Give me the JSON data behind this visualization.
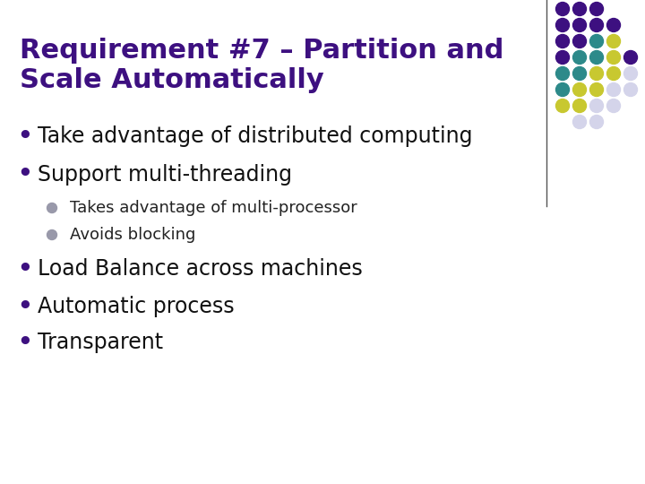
{
  "title_line1": "Requirement #7 – Partition and",
  "title_line2": "Scale Automatically",
  "title_color": "#3d1080",
  "background_color": "#ffffff",
  "title_fontsize": 22,
  "bullet_color": "#3d1080",
  "sub_bullet_color": "#9999aa",
  "main_bullets": [
    "Take advantage of distributed computing",
    "Support multi-threading"
  ],
  "sub_bullets": [
    "Takes advantage of multi-processor",
    "Avoids blocking"
  ],
  "more_bullets": [
    "Load Balance across machines",
    "Automatic process",
    "Transparent"
  ],
  "main_bullet_fontsize": 17,
  "sub_bullet_fontsize": 13,
  "dot_grid": {
    "colors": [
      [
        "#3d1080",
        "#3d1080",
        "#3d1080",
        "none",
        "none"
      ],
      [
        "#3d1080",
        "#3d1080",
        "#3d1080",
        "#3d1080",
        "none"
      ],
      [
        "#3d1080",
        "#3d1080",
        "#2d8a8a",
        "#c8c830",
        "none"
      ],
      [
        "#3d1080",
        "#2d8a8a",
        "#2d8a8a",
        "#c8c830",
        "#3d1080"
      ],
      [
        "#2d8a8a",
        "#2d8a8a",
        "#c8c830",
        "#c8c830",
        "#d4d4ea"
      ],
      [
        "#2d8a8a",
        "#c8c830",
        "#c8c830",
        "#d4d4ea",
        "#d4d4ea"
      ],
      [
        "#c8c830",
        "#c8c830",
        "#d4d4ea",
        "#d4d4ea",
        "none"
      ],
      [
        "none",
        "#d4d4ea",
        "#d4d4ea",
        "none",
        "none"
      ]
    ]
  }
}
